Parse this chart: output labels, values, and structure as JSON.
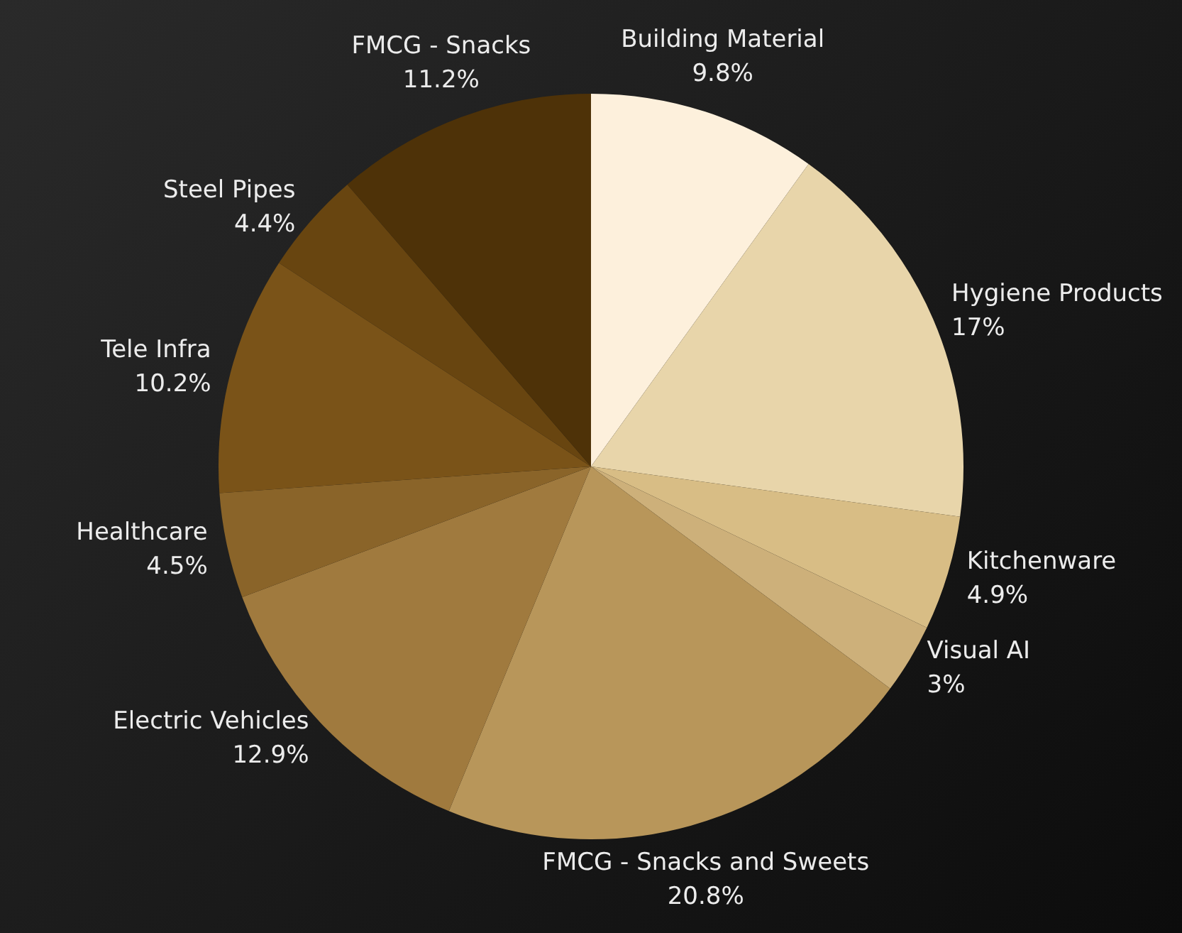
{
  "chart_data": {
    "type": "pie",
    "categories": [
      "Building Material",
      "Hygiene Products",
      "Kitchenware",
      "Visual AI",
      "FMCG - Snacks and Sweets",
      "Electric Vehicles",
      "Healthcare",
      "Tele Infra",
      "Steel Pipes",
      "FMCG - Snacks"
    ],
    "values": [
      9.8,
      17,
      4.9,
      3,
      20.8,
      12.9,
      4.5,
      10.2,
      4.4,
      11.2
    ],
    "value_labels": [
      "9.8%",
      "17%",
      "4.9%",
      "3%",
      "20.8%",
      "12.9%",
      "4.5%",
      "10.2%",
      "4.4%",
      "11.2%"
    ],
    "colors": [
      "#fdf0dc",
      "#e8d5aa",
      "#d8bd85",
      "#cdb07a",
      "#b8965a",
      "#a07a3e",
      "#8a6429",
      "#7a5318",
      "#684510",
      "#4e3208"
    ],
    "legend": false
  }
}
